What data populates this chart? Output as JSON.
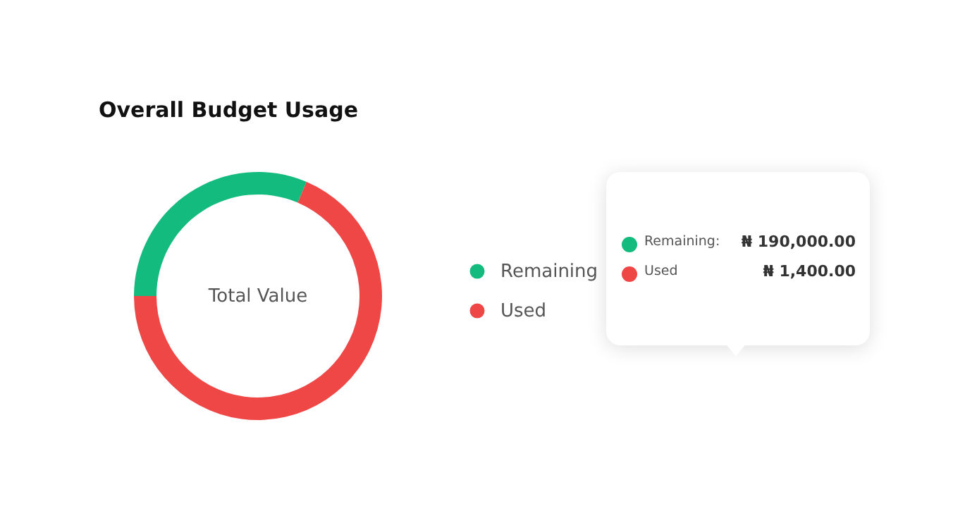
{
  "chart_data": {
    "type": "donut",
    "title": "Overall Budget Usage",
    "categories": [
      "Remaining",
      "Used"
    ],
    "values": [
      31.4,
      68.6
    ],
    "colors": [
      "#14bb7e",
      "#ef4646"
    ],
    "legend": "right",
    "annotations": [
      "Total Value",
      "Remaining:",
      "₦ 190,000.00",
      "Used",
      "₦ 1,400.00"
    ]
  }
}
